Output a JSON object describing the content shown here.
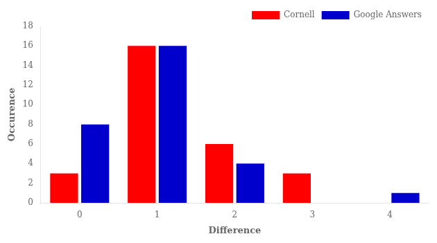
{
  "chart_data": {
    "type": "bar",
    "xlabel": "Difference",
    "ylabel": "Occurence",
    "categories": [
      "0",
      "1",
      "2",
      "3",
      "4"
    ],
    "series": [
      {
        "name": "Cornell",
        "color": "#ff0000",
        "values": [
          3,
          16,
          6,
          3,
          0
        ]
      },
      {
        "name": "Google Answers",
        "color": "#0000cc",
        "values": [
          8,
          16,
          4,
          0,
          1
        ]
      }
    ],
    "ylim": [
      0,
      18
    ],
    "yticks": [
      0,
      2,
      4,
      6,
      8,
      10,
      12,
      14,
      16,
      18
    ],
    "grid": false,
    "legend": "upper right"
  }
}
